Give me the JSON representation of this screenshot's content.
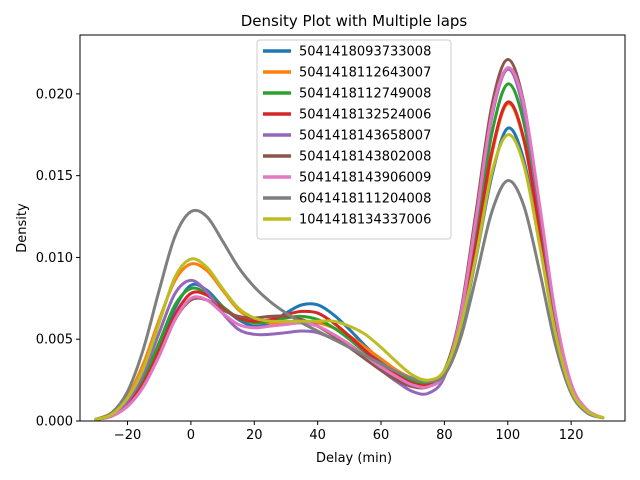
{
  "chart_data": {
    "type": "line",
    "title": "Density Plot with Multiple laps",
    "xlabel": "Delay (min)",
    "ylabel": "Density",
    "xlim": [
      -35,
      137
    ],
    "ylim": [
      0,
      0.0236
    ],
    "xticks": [
      -20,
      0,
      20,
      40,
      60,
      80,
      100,
      120
    ],
    "yticks": [
      0.0,
      0.005,
      0.01,
      0.015,
      0.02
    ],
    "ytick_labels": [
      "0.000",
      "0.005",
      "0.010",
      "0.015",
      "0.020"
    ],
    "grid": false,
    "legend_position": "top-center",
    "x": [
      -30,
      -25,
      -20,
      -15,
      -10,
      -5,
      0,
      5,
      10,
      15,
      20,
      25,
      30,
      35,
      40,
      45,
      50,
      55,
      60,
      65,
      70,
      75,
      80,
      85,
      90,
      95,
      100,
      105,
      110,
      115,
      120,
      125,
      130
    ],
    "series": [
      {
        "name": "5041418093733008",
        "color": "#1f77b4",
        "values": [
          0.0001,
          0.0004,
          0.0011,
          0.0025,
          0.0046,
          0.0069,
          0.0083,
          0.008,
          0.007,
          0.0062,
          0.0058,
          0.006,
          0.0066,
          0.0071,
          0.0071,
          0.0065,
          0.0056,
          0.0046,
          0.0037,
          0.003,
          0.0025,
          0.0024,
          0.003,
          0.0055,
          0.01,
          0.015,
          0.0179,
          0.016,
          0.011,
          0.0055,
          0.002,
          0.0006,
          0.0002
        ]
      },
      {
        "name": "5041418112643007",
        "color": "#ff7f0e",
        "values": [
          0.0001,
          0.0005,
          0.0015,
          0.0035,
          0.0062,
          0.0086,
          0.0096,
          0.0092,
          0.008,
          0.0068,
          0.0062,
          0.006,
          0.006,
          0.006,
          0.006,
          0.0057,
          0.0052,
          0.0045,
          0.0038,
          0.0031,
          0.0026,
          0.0024,
          0.003,
          0.0058,
          0.0105,
          0.0163,
          0.0194,
          0.0172,
          0.0117,
          0.0057,
          0.002,
          0.0006,
          0.0002
        ]
      },
      {
        "name": "5041418112749008",
        "color": "#2ca02c",
        "values": [
          0.0001,
          0.0004,
          0.0011,
          0.0026,
          0.0048,
          0.0071,
          0.0081,
          0.0078,
          0.007,
          0.0063,
          0.006,
          0.0061,
          0.0063,
          0.0064,
          0.0062,
          0.0057,
          0.005,
          0.0042,
          0.0035,
          0.0029,
          0.0024,
          0.0023,
          0.0031,
          0.0063,
          0.0115,
          0.0176,
          0.0206,
          0.0183,
          0.0124,
          0.006,
          0.0021,
          0.0006,
          0.0002
        ]
      },
      {
        "name": "5041418132524006",
        "color": "#d62728",
        "values": [
          0.0001,
          0.0003,
          0.001,
          0.0023,
          0.0043,
          0.0065,
          0.0078,
          0.0077,
          0.0069,
          0.0063,
          0.0061,
          0.0062,
          0.0065,
          0.0067,
          0.0066,
          0.006,
          0.0052,
          0.0043,
          0.0035,
          0.0028,
          0.0023,
          0.0022,
          0.0029,
          0.0058,
          0.0108,
          0.0165,
          0.0195,
          0.0173,
          0.0118,
          0.0058,
          0.002,
          0.0006,
          0.0002
        ]
      },
      {
        "name": "5041418143658007",
        "color": "#9467bd",
        "values": [
          0.0001,
          0.0004,
          0.0012,
          0.0029,
          0.0054,
          0.0078,
          0.0086,
          0.0079,
          0.0066,
          0.0056,
          0.0053,
          0.0053,
          0.0054,
          0.0055,
          0.0054,
          0.005,
          0.0045,
          0.0038,
          0.0031,
          0.0024,
          0.0018,
          0.0017,
          0.0027,
          0.0062,
          0.0122,
          0.0186,
          0.0215,
          0.019,
          0.0128,
          0.0062,
          0.0022,
          0.0006,
          0.0002
        ]
      },
      {
        "name": "5041418143802008",
        "color": "#8c564b",
        "values": [
          0.0001,
          0.0003,
          0.0009,
          0.0021,
          0.004,
          0.0062,
          0.0074,
          0.0074,
          0.0068,
          0.0064,
          0.0063,
          0.0064,
          0.0064,
          0.0062,
          0.0058,
          0.0052,
          0.0045,
          0.0038,
          0.0031,
          0.0025,
          0.0021,
          0.0021,
          0.003,
          0.0065,
          0.0128,
          0.0193,
          0.0221,
          0.0195,
          0.0131,
          0.0063,
          0.0022,
          0.0006,
          0.0002
        ]
      },
      {
        "name": "5041418143906009",
        "color": "#e377c2",
        "values": [
          0.0001,
          0.0003,
          0.0009,
          0.0021,
          0.004,
          0.0062,
          0.0075,
          0.0074,
          0.0066,
          0.0059,
          0.0057,
          0.0058,
          0.0059,
          0.006,
          0.0058,
          0.0053,
          0.0047,
          0.004,
          0.0033,
          0.0027,
          0.0022,
          0.0021,
          0.0029,
          0.0063,
          0.0124,
          0.0188,
          0.0216,
          0.0194,
          0.0133,
          0.0066,
          0.0023,
          0.0007,
          0.0002
        ]
      },
      {
        "name": "6041418111204008",
        "color": "#7f7f7f",
        "values": [
          0.0001,
          0.0005,
          0.0018,
          0.0044,
          0.008,
          0.0113,
          0.0128,
          0.0125,
          0.011,
          0.0094,
          0.0082,
          0.0073,
          0.0066,
          0.006,
          0.0055,
          0.005,
          0.0045,
          0.004,
          0.0035,
          0.003,
          0.0026,
          0.0024,
          0.0028,
          0.005,
          0.0088,
          0.0128,
          0.0147,
          0.0132,
          0.0092,
          0.0047,
          0.0017,
          0.0005,
          0.0002
        ]
      },
      {
        "name": "1041418134337006",
        "color": "#bcbd22",
        "values": [
          0.0001,
          0.0004,
          0.0014,
          0.0032,
          0.006,
          0.0088,
          0.0099,
          0.0094,
          0.0081,
          0.0069,
          0.0063,
          0.0061,
          0.0061,
          0.0061,
          0.0061,
          0.0061,
          0.0058,
          0.0053,
          0.0045,
          0.0036,
          0.0028,
          0.0025,
          0.0031,
          0.0057,
          0.0101,
          0.0152,
          0.0175,
          0.0157,
          0.0108,
          0.0054,
          0.0019,
          0.0006,
          0.0002
        ]
      }
    ]
  }
}
